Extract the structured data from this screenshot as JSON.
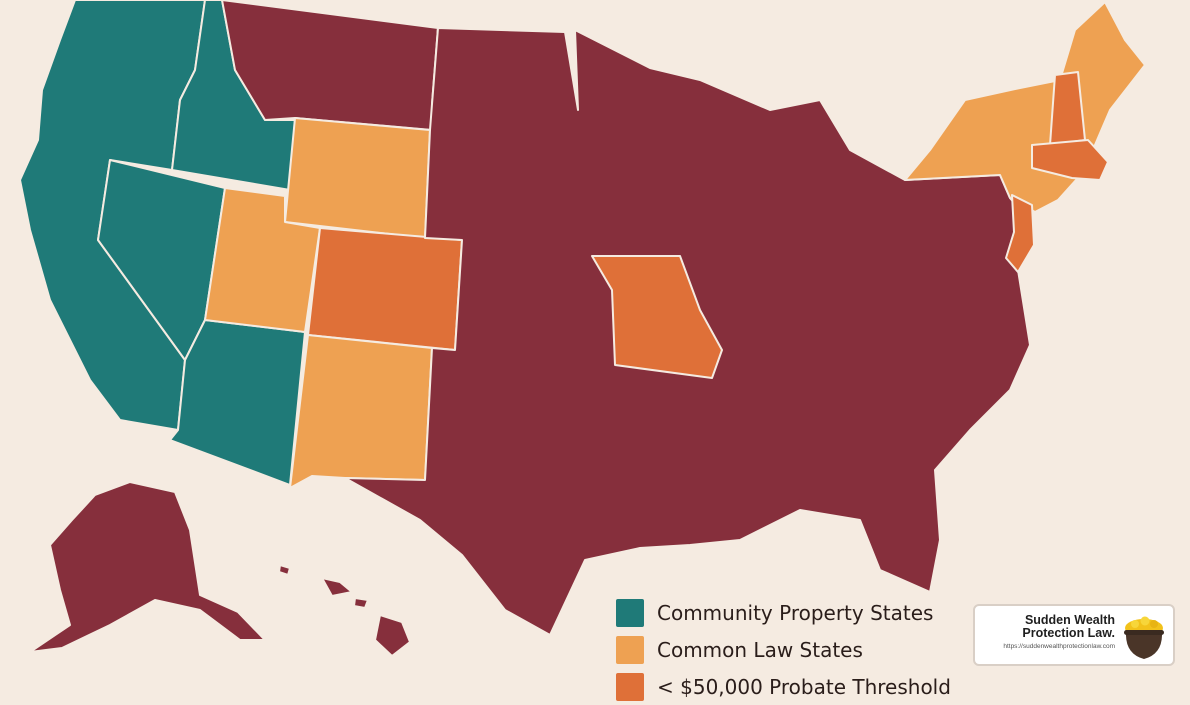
{
  "map": {
    "regions": [
      {
        "name": "west-coast-region",
        "category": "community"
      },
      {
        "name": "idaho-region",
        "category": "community"
      },
      {
        "name": "nevada-region",
        "category": "community"
      },
      {
        "name": "arizona-region",
        "category": "community"
      },
      {
        "name": "alaska-region",
        "category": "common"
      },
      {
        "name": "hawaii-region",
        "category": "common"
      },
      {
        "name": "montana-region",
        "category": "common"
      },
      {
        "name": "wyoming-region",
        "category": "common_light"
      },
      {
        "name": "north-dakota-region",
        "category": "common_light"
      },
      {
        "name": "utah-region",
        "category": "common_light"
      },
      {
        "name": "new-mexico-region",
        "category": "common_light"
      },
      {
        "name": "colorado-region",
        "category": "probate"
      },
      {
        "name": "missouri-region",
        "category": "probate"
      },
      {
        "name": "central-east-region",
        "category": "common"
      },
      {
        "name": "northeast-region",
        "category": "common_light"
      },
      {
        "name": "new-hampshire-region",
        "category": "probate"
      },
      {
        "name": "massachusetts-region",
        "category": "probate"
      },
      {
        "name": "new-jersey-region",
        "category": "probate"
      }
    ],
    "colors": {
      "community": "#1f7a78",
      "common": "#862f3c",
      "common_light": "#eea152",
      "probate": "#df7038"
    }
  },
  "legend": {
    "items": [
      {
        "label": "Community Property States",
        "color": "#1f7a78"
      },
      {
        "label": "Common Law States",
        "color": "#eea152"
      },
      {
        "label": "< $50,000 Probate Threshold",
        "color": "#df7038"
      }
    ]
  },
  "logo": {
    "title": "Sudden Wealth Protection Law.",
    "url": "https://suddenwealthprotectionlaw.com",
    "icon": "pot-of-gold-icon"
  }
}
